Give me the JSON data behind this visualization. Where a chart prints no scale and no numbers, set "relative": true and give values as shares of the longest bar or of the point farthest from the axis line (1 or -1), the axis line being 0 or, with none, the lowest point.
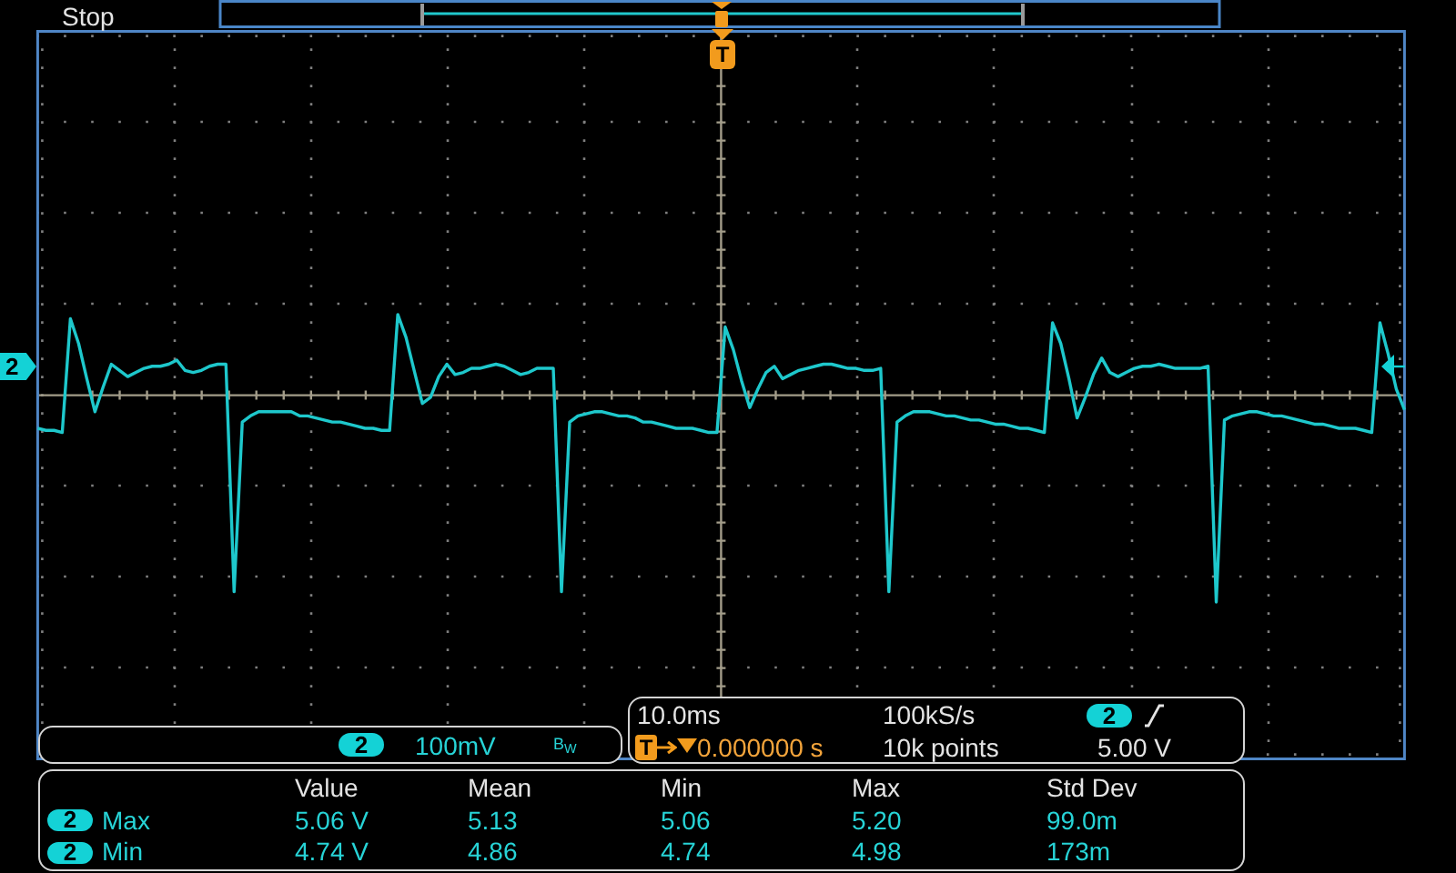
{
  "chart_data": {
    "type": "line",
    "relative": true,
    "grid": true,
    "color": "#1ec8cc",
    "categories": [
      null,
      null,
      null,
      null,
      null,
      null,
      null,
      null,
      null,
      null,
      null,
      null,
      null,
      null,
      null,
      null,
      null,
      null,
      null,
      null,
      null,
      null,
      null,
      null,
      null,
      null,
      null,
      null,
      null,
      null,
      null,
      null,
      null,
      null,
      null,
      null,
      null,
      null,
      null,
      null,
      null,
      null,
      null,
      null,
      null,
      null,
      null,
      null,
      null,
      null,
      null,
      null,
      null,
      null,
      null,
      null,
      null,
      null,
      null,
      null,
      null,
      null,
      null,
      null,
      null,
      null,
      null,
      null,
      null,
      null,
      null,
      null,
      null,
      null,
      null,
      null,
      null,
      null,
      null,
      null,
      null,
      null,
      null,
      null,
      null,
      null,
      null,
      null,
      null,
      null,
      null,
      null,
      null,
      null,
      null,
      null,
      null,
      null,
      null,
      null,
      null,
      null,
      null,
      null,
      null,
      null,
      null,
      null,
      null,
      null,
      null,
      null,
      null,
      null,
      null,
      null,
      null,
      null,
      null,
      null,
      null,
      null,
      null,
      null,
      null,
      null,
      null,
      null,
      null,
      null,
      null,
      null,
      null,
      null,
      null,
      null,
      null,
      null,
      null,
      null,
      null,
      null,
      null,
      null,
      null,
      null,
      null,
      null,
      null,
      null,
      null,
      null,
      null,
      null,
      null,
      null,
      null,
      null,
      null,
      null,
      null,
      null,
      null,
      null,
      null,
      null,
      null,
      null
    ],
    "values": [
      -0.16,
      -0.17,
      -0.17,
      -0.18,
      0.37,
      0.25,
      0.08,
      -0.08,
      0.04,
      0.15,
      0.12,
      0.09,
      0.11,
      0.13,
      0.14,
      0.14,
      0.15,
      0.17,
      0.12,
      0.11,
      0.12,
      0.14,
      0.15,
      0.15,
      -0.95,
      -0.13,
      -0.1,
      -0.08,
      -0.08,
      -0.08,
      -0.08,
      -0.08,
      -0.1,
      -0.1,
      -0.11,
      -0.12,
      -0.13,
      -0.13,
      -0.14,
      -0.15,
      -0.16,
      -0.16,
      -0.17,
      -0.17,
      0.39,
      0.28,
      0.12,
      -0.04,
      -0.01,
      0.09,
      0.15,
      0.1,
      0.11,
      0.13,
      0.13,
      0.14,
      0.15,
      0.14,
      0.12,
      0.1,
      0.11,
      0.13,
      0.13,
      0.13,
      -0.95,
      -0.13,
      -0.1,
      -0.09,
      -0.08,
      -0.08,
      -0.09,
      -0.1,
      -0.1,
      -0.11,
      -0.13,
      -0.13,
      -0.14,
      -0.15,
      -0.16,
      -0.16,
      -0.16,
      -0.17,
      -0.18,
      -0.18,
      0.33,
      0.22,
      0.07,
      -0.06,
      0.03,
      0.11,
      0.14,
      0.08,
      0.1,
      0.12,
      0.13,
      0.14,
      0.15,
      0.15,
      0.14,
      0.13,
      0.13,
      0.12,
      0.12,
      0.13,
      -0.95,
      -0.13,
      -0.1,
      -0.08,
      -0.08,
      -0.08,
      -0.09,
      -0.1,
      -0.1,
      -0.11,
      -0.12,
      -0.12,
      -0.13,
      -0.14,
      -0.14,
      -0.15,
      -0.16,
      -0.16,
      -0.17,
      -0.18,
      0.35,
      0.25,
      0.08,
      -0.11,
      -0.01,
      0.1,
      0.18,
      0.11,
      0.09,
      0.11,
      0.13,
      0.14,
      0.14,
      0.15,
      0.14,
      0.13,
      0.13,
      0.13,
      0.13,
      0.14,
      -1,
      -0.12,
      -0.1,
      -0.09,
      -0.08,
      -0.08,
      -0.09,
      -0.1,
      -0.1,
      -0.11,
      -0.12,
      -0.13,
      -0.14,
      -0.14,
      -0.15,
      -0.16,
      -0.16,
      -0.16,
      -0.17,
      -0.18,
      0.35,
      0.2,
      0.03,
      -0.07
    ],
    "ref_lines": [
      {
        "axis": "y",
        "value": 0,
        "color": "#a39d8a"
      }
    ],
    "annotations": [
      "Stop",
      "T",
      "2",
      "2",
      "100mV",
      "B$_{W}$",
      "10.0ms",
      "100kS/s",
      "2",
      "T",
      "0.000000 s",
      "10k points",
      "5.00 V",
      "Value",
      "Mean",
      "Min",
      "Max",
      "Std Dev",
      "2",
      "Max",
      "5.06 V",
      "5.13",
      "5.06",
      "5.20",
      "99.0m",
      "2",
      "Min",
      "4.74 V",
      "4.86",
      "4.74",
      "4.98",
      "173m"
    ]
  }
}
